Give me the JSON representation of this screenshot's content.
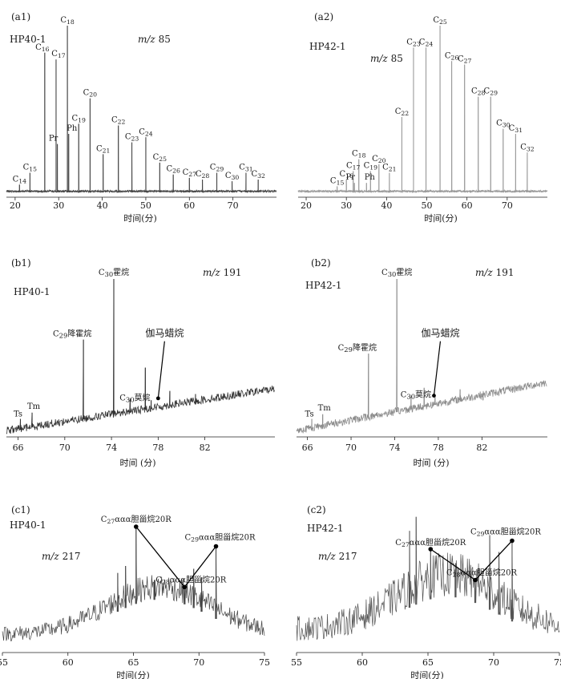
{
  "chart_data": [
    {
      "type": "line",
      "panel": "(a1)",
      "sample": "HP40-1",
      "ion": "m/z 85",
      "xlabel": "时间(分)",
      "xlim": [
        18,
        80
      ],
      "x_ticks": [
        "20",
        "30",
        "40",
        "50",
        "60",
        "70"
      ],
      "trace_color": "#444444",
      "peaks": [
        {
          "label": "C14",
          "x": 21.0,
          "rel": 0.06
        },
        {
          "label": "C15",
          "x": 23.4,
          "rel": 0.13
        },
        {
          "label": "C16",
          "x": 26.8,
          "rel": 0.84
        },
        {
          "label": "C17",
          "x": 29.4,
          "rel": 0.8
        },
        {
          "label": "Pr",
          "x": 29.7,
          "rel": 0.3
        },
        {
          "label": "C18",
          "x": 32.0,
          "rel": 1.0
        },
        {
          "label": "Ph",
          "x": 32.3,
          "rel": 0.36
        },
        {
          "label": "C19",
          "x": 34.6,
          "rel": 0.42
        },
        {
          "label": "C20",
          "x": 37.2,
          "rel": 0.57
        },
        {
          "label": "C21",
          "x": 40.2,
          "rel": 0.24
        },
        {
          "label": "C22",
          "x": 43.7,
          "rel": 0.41
        },
        {
          "label": "C23",
          "x": 46.8,
          "rel": 0.31
        },
        {
          "label": "C24",
          "x": 50.0,
          "rel": 0.34
        },
        {
          "label": "C25",
          "x": 53.2,
          "rel": 0.19
        },
        {
          "label": "C26",
          "x": 56.3,
          "rel": 0.12
        },
        {
          "label": "C27",
          "x": 60.0,
          "rel": 0.1
        },
        {
          "label": "C28",
          "x": 63.0,
          "rel": 0.09
        },
        {
          "label": "C29",
          "x": 66.3,
          "rel": 0.13
        },
        {
          "label": "C30",
          "x": 69.8,
          "rel": 0.08
        },
        {
          "label": "C31",
          "x": 73.0,
          "rel": 0.13
        },
        {
          "label": "C32",
          "x": 75.8,
          "rel": 0.09
        }
      ]
    },
    {
      "type": "line",
      "panel": "(a2)",
      "sample": "HP42-1",
      "ion": "m/z 85",
      "xlabel": "时间(分)",
      "xlim": [
        18,
        80
      ],
      "x_ticks": [
        "20",
        "30",
        "40",
        "50",
        "60",
        "70"
      ],
      "trace_color": "#9a9a9a",
      "peaks": [
        {
          "label": "C15",
          "x": 27.7,
          "rel": 0.05
        },
        {
          "label": "C16",
          "x": 30.0,
          "rel": 0.09
        },
        {
          "label": "C17",
          "x": 31.7,
          "rel": 0.14
        },
        {
          "label": "Pr",
          "x": 32.0,
          "rel": 0.07
        },
        {
          "label": "C18",
          "x": 33.1,
          "rel": 0.21
        },
        {
          "label": "Ph",
          "x": 35.0,
          "rel": 0.07
        },
        {
          "label": "C19",
          "x": 36.0,
          "rel": 0.14
        },
        {
          "label": "C20",
          "x": 38.1,
          "rel": 0.18
        },
        {
          "label": "C21",
          "x": 40.7,
          "rel": 0.13
        },
        {
          "label": "C22",
          "x": 43.8,
          "rel": 0.46
        },
        {
          "label": "C23",
          "x": 46.7,
          "rel": 0.87
        },
        {
          "label": "C24",
          "x": 49.8,
          "rel": 0.87
        },
        {
          "label": "C25",
          "x": 53.3,
          "rel": 1.0
        },
        {
          "label": "C26",
          "x": 56.2,
          "rel": 0.79
        },
        {
          "label": "C27",
          "x": 59.4,
          "rel": 0.77
        },
        {
          "label": "C28",
          "x": 62.8,
          "rel": 0.58
        },
        {
          "label": "C29",
          "x": 65.9,
          "rel": 0.58
        },
        {
          "label": "C30",
          "x": 69.0,
          "rel": 0.39
        },
        {
          "label": "C31",
          "x": 72.1,
          "rel": 0.36
        },
        {
          "label": "C32",
          "x": 75.0,
          "rel": 0.25
        }
      ]
    },
    {
      "type": "line",
      "panel": "(b1)",
      "sample": "HP40-1",
      "ion": "m/z 191",
      "xlabel": "时间 (分)",
      "xlim": [
        65,
        88
      ],
      "x_ticks": [
        "66",
        "70",
        "74",
        "78",
        "82"
      ],
      "trace_color": "#333333",
      "baseline_start": 0.02,
      "baseline_end": 0.29,
      "peaks": [
        {
          "label": "Ts",
          "x": 66.2,
          "rel": 0.1
        },
        {
          "label": "Tm",
          "x": 67.2,
          "rel": 0.14
        },
        {
          "label": "C29降霍烷",
          "x": 71.6,
          "rel": 0.61
        },
        {
          "label": "C30霍烷",
          "x": 74.2,
          "rel": 1.0
        },
        {
          "label": "C30莫烷",
          "x": 75.6,
          "rel": 0.23
        },
        {
          "label": "",
          "x": 76.9,
          "rel": 0.43
        },
        {
          "label": "",
          "x": 77.4,
          "rel": 0.22
        },
        {
          "label": "",
          "x": 79.0,
          "rel": 0.28
        },
        {
          "label": "",
          "x": 81.2,
          "rel": 0.26
        },
        {
          "label": "",
          "x": 83.5,
          "rel": 0.24
        }
      ],
      "arrow_label": "伽马蜡烷",
      "arrow_target_x": 78.0
    },
    {
      "type": "line",
      "panel": "(b2)",
      "sample": "HP42-1",
      "ion": "m/z 191",
      "xlabel": "时间 (分)",
      "xlim": [
        65,
        88
      ],
      "x_ticks": [
        "66",
        "70",
        "74",
        "78",
        "82"
      ],
      "trace_color": "#8c8c8c",
      "baseline_start": 0.02,
      "baseline_end": 0.33,
      "peaks": [
        {
          "label": "Ts",
          "x": 66.4,
          "rel": 0.1
        },
        {
          "label": "Tm",
          "x": 67.4,
          "rel": 0.13
        },
        {
          "label": "C29降霍烷",
          "x": 71.6,
          "rel": 0.52
        },
        {
          "label": "C30霍烷",
          "x": 74.2,
          "rel": 1.0
        },
        {
          "label": "C30莫烷",
          "x": 75.5,
          "rel": 0.25
        },
        {
          "label": "",
          "x": 76.7,
          "rel": 0.3
        },
        {
          "label": "",
          "x": 77.7,
          "rel": 0.24
        },
        {
          "label": "",
          "x": 80.0,
          "rel": 0.29
        },
        {
          "label": "",
          "x": 82.1,
          "rel": 0.22
        },
        {
          "label": "",
          "x": 84.8,
          "rel": 0.3
        }
      ],
      "arrow_label": "伽马蜡烷",
      "arrow_target_x": 77.6
    },
    {
      "type": "line",
      "panel": "(c1)",
      "sample": "HP40-1",
      "ion": "m/z 217",
      "xlabel": "时间(分)",
      "xlim": [
        55,
        75
      ],
      "x_ticks": [
        "55",
        "60",
        "65",
        "70",
        "75"
      ],
      "trace_color": "#444444",
      "noise_level": 0.18,
      "hump_center": 67.0,
      "hump_height": 0.3,
      "peaks": [
        {
          "label": "C27ααα胆甾烷20R",
          "x": 65.2,
          "rel": 0.88
        },
        {
          "label": "C28ααα胆甾烷20R",
          "x": 68.9,
          "rel": 0.45
        },
        {
          "label": "C29ααα胆甾烷20R",
          "x": 71.3,
          "rel": 0.74
        },
        {
          "label": "",
          "x": 63.8,
          "rel": 0.55
        },
        {
          "label": "",
          "x": 64.4,
          "rel": 0.6
        },
        {
          "label": "",
          "x": 66.6,
          "rel": 0.5
        },
        {
          "label": "",
          "x": 69.6,
          "rel": 0.58
        },
        {
          "label": "",
          "x": 70.2,
          "rel": 0.52
        }
      ]
    },
    {
      "type": "line",
      "panel": "(c2)",
      "sample": "HP42-1",
      "ion": "m/z 217",
      "xlabel": "时间(分)",
      "xlim": [
        55,
        75
      ],
      "x_ticks": [
        "55",
        "60",
        "65",
        "70",
        "75"
      ],
      "trace_color": "#555555",
      "noise_level": 0.3,
      "hump_center": 66.5,
      "hump_height": 0.32,
      "peaks": [
        {
          "label": "C27ααα胆甾烷20R",
          "x": 65.2,
          "rel": 0.72
        },
        {
          "label": "C28ααα胆甾烷20R",
          "x": 68.6,
          "rel": 0.5
        },
        {
          "label": "C29ααα胆甾烷20R",
          "x": 71.4,
          "rel": 0.78
        },
        {
          "label": "",
          "x": 63.6,
          "rel": 0.85
        },
        {
          "label": "",
          "x": 64.1,
          "rel": 0.95
        },
        {
          "label": "",
          "x": 67.1,
          "rel": 0.62
        },
        {
          "label": "",
          "x": 69.7,
          "rel": 0.82
        },
        {
          "label": "",
          "x": 70.4,
          "rel": 0.7
        }
      ]
    }
  ]
}
